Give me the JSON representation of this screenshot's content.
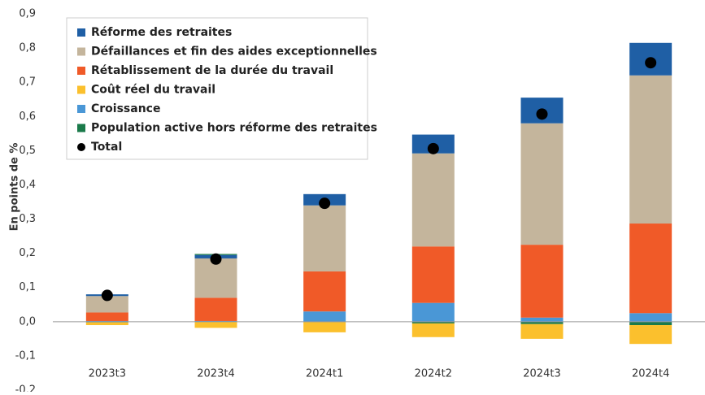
{
  "chart_data": {
    "type": "bar",
    "stacked": true,
    "ylabel": "En points de %",
    "categories": [
      "2023t3",
      "2023t4",
      "2024t1",
      "2024t2",
      "2024t3",
      "2024t4"
    ],
    "series": [
      {
        "name": "Réforme des retraites",
        "color": "#1f5fa5",
        "values": [
          0.005,
          0.01,
          0.033,
          0.055,
          0.075,
          0.095
        ]
      },
      {
        "name": "Défaillances et fin des aides exceptionnelles",
        "color": "#c4b59c",
        "values": [
          0.048,
          0.115,
          0.193,
          0.272,
          0.355,
          0.433
        ]
      },
      {
        "name": "Rétablissement de la durée du travail",
        "color": "#f05a28",
        "values": [
          0.025,
          0.068,
          0.117,
          0.165,
          0.213,
          0.262
        ]
      },
      {
        "name": "Coût réel du travail",
        "color": "#fbc02d",
        "values": [
          -0.008,
          -0.018,
          -0.03,
          -0.04,
          -0.043,
          -0.055
        ]
      },
      {
        "name": "Croissance",
        "color": "#4a97d6",
        "values": [
          0.002,
          0.002,
          0.03,
          0.055,
          0.012,
          0.025
        ]
      },
      {
        "name": "Population active hors réforme des retraites",
        "color": "#1a7a4a",
        "values": [
          -0.002,
          0.003,
          -0.001,
          -0.005,
          -0.007,
          -0.01
        ]
      }
    ],
    "total": {
      "name": "Total",
      "color": "#000000",
      "values": [
        0.077,
        0.183,
        0.346,
        0.506,
        0.607,
        0.757
      ]
    },
    "ylim": [
      -0.2,
      0.9
    ],
    "yticks": [
      {
        "value": -0.2,
        "label": "-0,2"
      },
      {
        "value": -0.1,
        "label": "-0,1"
      },
      {
        "value": 0,
        "label": "0,0"
      },
      {
        "value": 0.1,
        "label": "0,1"
      },
      {
        "value": 0.2,
        "label": "0,2"
      },
      {
        "value": 0.3,
        "label": "0,3"
      },
      {
        "value": 0.4,
        "label": "0,4"
      },
      {
        "value": 0.5,
        "label": "0,5"
      },
      {
        "value": 0.6,
        "label": "0,6"
      },
      {
        "value": 0.7,
        "label": "0,7"
      },
      {
        "value": 0.8,
        "label": "0,8"
      },
      {
        "value": 0.9,
        "label": "0,9"
      }
    ],
    "grid": false,
    "legend": "upper left"
  }
}
